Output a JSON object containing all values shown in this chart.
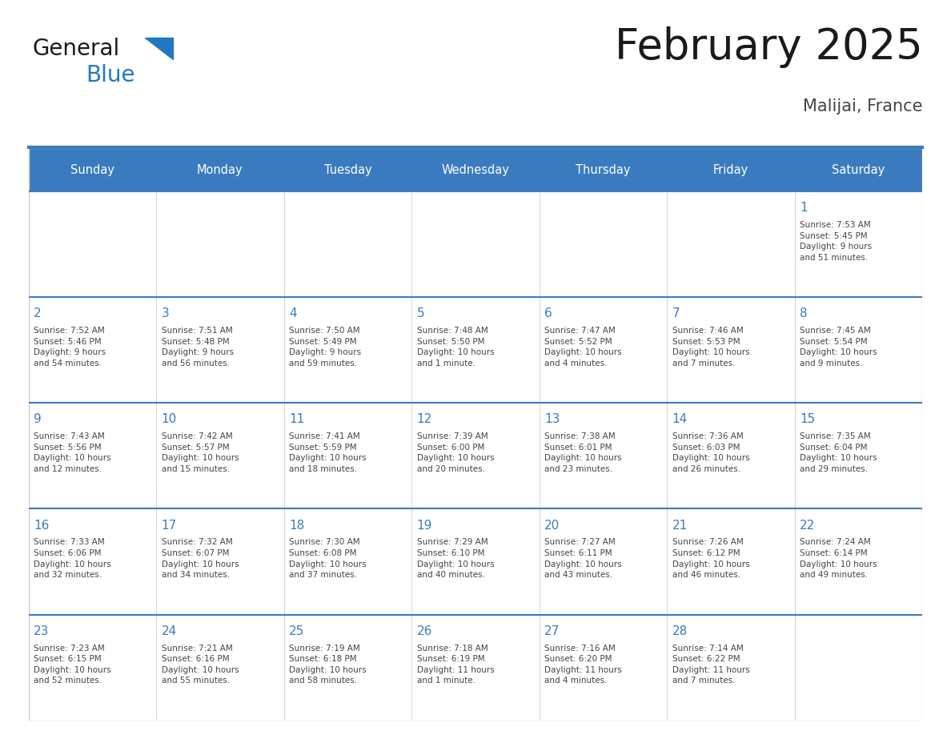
{
  "title": "February 2025",
  "subtitle": "Malijai, France",
  "days_of_week": [
    "Sunday",
    "Monday",
    "Tuesday",
    "Wednesday",
    "Thursday",
    "Friday",
    "Saturday"
  ],
  "header_bg": "#3a7bbf",
  "header_text": "#ffffff",
  "cell_bg": "#ffffff",
  "border_color": "#3a7bbf",
  "cell_border_color": "#cccccc",
  "day_number_color": "#3a7bbf",
  "text_color": "#444444",
  "logo_general_color": "#1a1a1a",
  "logo_blue_color": "#2278c0",
  "title_color": "#1a1a1a",
  "subtitle_color": "#444444",
  "calendar_data": [
    [
      null,
      null,
      null,
      null,
      null,
      null,
      {
        "day": 1,
        "sunrise": "7:53 AM",
        "sunset": "5:45 PM",
        "daylight": "9 hours\nand 51 minutes."
      }
    ],
    [
      {
        "day": 2,
        "sunrise": "7:52 AM",
        "sunset": "5:46 PM",
        "daylight": "9 hours\nand 54 minutes."
      },
      {
        "day": 3,
        "sunrise": "7:51 AM",
        "sunset": "5:48 PM",
        "daylight": "9 hours\nand 56 minutes."
      },
      {
        "day": 4,
        "sunrise": "7:50 AM",
        "sunset": "5:49 PM",
        "daylight": "9 hours\nand 59 minutes."
      },
      {
        "day": 5,
        "sunrise": "7:48 AM",
        "sunset": "5:50 PM",
        "daylight": "10 hours\nand 1 minute."
      },
      {
        "day": 6,
        "sunrise": "7:47 AM",
        "sunset": "5:52 PM",
        "daylight": "10 hours\nand 4 minutes."
      },
      {
        "day": 7,
        "sunrise": "7:46 AM",
        "sunset": "5:53 PM",
        "daylight": "10 hours\nand 7 minutes."
      },
      {
        "day": 8,
        "sunrise": "7:45 AM",
        "sunset": "5:54 PM",
        "daylight": "10 hours\nand 9 minutes."
      }
    ],
    [
      {
        "day": 9,
        "sunrise": "7:43 AM",
        "sunset": "5:56 PM",
        "daylight": "10 hours\nand 12 minutes."
      },
      {
        "day": 10,
        "sunrise": "7:42 AM",
        "sunset": "5:57 PM",
        "daylight": "10 hours\nand 15 minutes."
      },
      {
        "day": 11,
        "sunrise": "7:41 AM",
        "sunset": "5:59 PM",
        "daylight": "10 hours\nand 18 minutes."
      },
      {
        "day": 12,
        "sunrise": "7:39 AM",
        "sunset": "6:00 PM",
        "daylight": "10 hours\nand 20 minutes."
      },
      {
        "day": 13,
        "sunrise": "7:38 AM",
        "sunset": "6:01 PM",
        "daylight": "10 hours\nand 23 minutes."
      },
      {
        "day": 14,
        "sunrise": "7:36 AM",
        "sunset": "6:03 PM",
        "daylight": "10 hours\nand 26 minutes."
      },
      {
        "day": 15,
        "sunrise": "7:35 AM",
        "sunset": "6:04 PM",
        "daylight": "10 hours\nand 29 minutes."
      }
    ],
    [
      {
        "day": 16,
        "sunrise": "7:33 AM",
        "sunset": "6:06 PM",
        "daylight": "10 hours\nand 32 minutes."
      },
      {
        "day": 17,
        "sunrise": "7:32 AM",
        "sunset": "6:07 PM",
        "daylight": "10 hours\nand 34 minutes."
      },
      {
        "day": 18,
        "sunrise": "7:30 AM",
        "sunset": "6:08 PM",
        "daylight": "10 hours\nand 37 minutes."
      },
      {
        "day": 19,
        "sunrise": "7:29 AM",
        "sunset": "6:10 PM",
        "daylight": "10 hours\nand 40 minutes."
      },
      {
        "day": 20,
        "sunrise": "7:27 AM",
        "sunset": "6:11 PM",
        "daylight": "10 hours\nand 43 minutes."
      },
      {
        "day": 21,
        "sunrise": "7:26 AM",
        "sunset": "6:12 PM",
        "daylight": "10 hours\nand 46 minutes."
      },
      {
        "day": 22,
        "sunrise": "7:24 AM",
        "sunset": "6:14 PM",
        "daylight": "10 hours\nand 49 minutes."
      }
    ],
    [
      {
        "day": 23,
        "sunrise": "7:23 AM",
        "sunset": "6:15 PM",
        "daylight": "10 hours\nand 52 minutes."
      },
      {
        "day": 24,
        "sunrise": "7:21 AM",
        "sunset": "6:16 PM",
        "daylight": "10 hours\nand 55 minutes."
      },
      {
        "day": 25,
        "sunrise": "7:19 AM",
        "sunset": "6:18 PM",
        "daylight": "10 hours\nand 58 minutes."
      },
      {
        "day": 26,
        "sunrise": "7:18 AM",
        "sunset": "6:19 PM",
        "daylight": "11 hours\nand 1 minute."
      },
      {
        "day": 27,
        "sunrise": "7:16 AM",
        "sunset": "6:20 PM",
        "daylight": "11 hours\nand 4 minutes."
      },
      {
        "day": 28,
        "sunrise": "7:14 AM",
        "sunset": "6:22 PM",
        "daylight": "11 hours\nand 7 minutes."
      },
      null
    ]
  ]
}
